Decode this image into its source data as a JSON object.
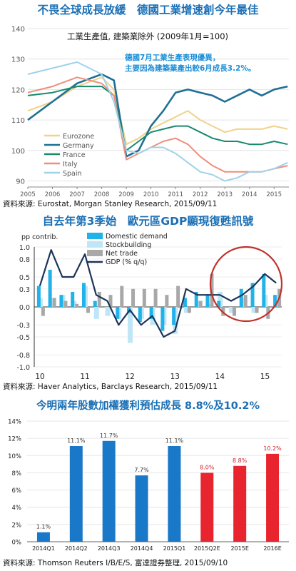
{
  "panel1": {
    "title": "不畏全球成長放緩　德國工業增速創今年最佳",
    "source": "資料來源: Eurostat, Morgan Stanley Research, 2015/09/11"
  },
  "panel2": {
    "title": "自去年第3季始　歐元區GDP顯現復甦訊號",
    "source": "資料來源: Haver Analytics, Barclays Research, 2015/09/11"
  },
  "panel3": {
    "title": "今明兩年股數加權獲利預估成長 8.8%及10.2%",
    "source": "資料來源: Thomson Reuters I/B/E/S, 富達證券整理, 2015/09/10"
  },
  "colors": {
    "eurozone": "#f0d38a",
    "germany": "#1f6f95",
    "france": "#1a8a6c",
    "italy": "#ee8e7d",
    "spain": "#9fd2ea",
    "domestic": "#20b2e8",
    "stockbuilding": "#bfe6f6",
    "nettrade": "#a8a8a8",
    "gdp": "#1c3557",
    "earn_blue": "#1978c8",
    "earn_red": "#e8242e",
    "title": "#1a6fb5"
  },
  "chart_data": [
    {
      "type": "line",
      "title": "工業生產值, 建築業除外 (2009年1月=100)",
      "annotation": "德國7月工業生產表現優異，主要因為建築業產出較6月成長3.2%。",
      "xlabel": "",
      "ylabel": "",
      "x_ticks": [
        "2005",
        "2006",
        "2007",
        "2008",
        "2009",
        "2010",
        "2011",
        "2012",
        "2013",
        "2014",
        "2015"
      ],
      "y_ticks": [
        90,
        100,
        110,
        120,
        130,
        140
      ],
      "ylim": [
        88,
        140
      ],
      "xlim": [
        2005,
        2015.6
      ],
      "grid": true,
      "legend": "bottom-left",
      "series": [
        {
          "name": "Eurozone",
          "color_key": "eurozone",
          "x": [
            2005,
            2006,
            2007,
            2008,
            2008.5,
            2009,
            2009.5,
            2010,
            2010.5,
            2011,
            2011.5,
            2012,
            2012.5,
            2013,
            2013.5,
            2014,
            2014.5,
            2015,
            2015.55
          ],
          "y": [
            113,
            116,
            121,
            124,
            120,
            102,
            104,
            107,
            109,
            111,
            113,
            110,
            108,
            106,
            107,
            107,
            107,
            108,
            107
          ]
        },
        {
          "name": "Germany",
          "color_key": "germany",
          "x": [
            2005,
            2006,
            2007,
            2008,
            2008.5,
            2009,
            2009.5,
            2010,
            2010.5,
            2011,
            2011.5,
            2012,
            2012.5,
            2013,
            2013.5,
            2014,
            2014.5,
            2015,
            2015.55
          ],
          "y": [
            110,
            116,
            122,
            125,
            123,
            98,
            100,
            108,
            113,
            119,
            120,
            119,
            118,
            116,
            118,
            120,
            118,
            120,
            121
          ]
        },
        {
          "name": "France",
          "color_key": "france",
          "x": [
            2005,
            2006,
            2007,
            2008,
            2008.5,
            2009,
            2009.5,
            2010,
            2010.5,
            2011,
            2011.5,
            2012,
            2012.5,
            2013,
            2013.5,
            2014,
            2014.5,
            2015,
            2015.55
          ],
          "y": [
            118,
            119,
            121,
            121,
            118,
            100,
            103,
            106,
            107,
            108,
            108,
            106,
            104,
            103,
            103,
            102,
            102,
            103,
            102
          ]
        },
        {
          "name": "Italy",
          "color_key": "italy",
          "x": [
            2005,
            2006,
            2007,
            2008,
            2008.5,
            2009,
            2009.5,
            2010,
            2010.5,
            2011,
            2011.5,
            2012,
            2012.5,
            2013,
            2013.5,
            2014,
            2014.5,
            2015,
            2015.55
          ],
          "y": [
            119,
            121,
            124,
            122,
            118,
            97,
            99,
            101,
            103,
            104,
            102,
            98,
            95,
            93,
            93,
            93,
            93,
            94,
            95
          ]
        },
        {
          "name": "Spain",
          "color_key": "spain",
          "x": [
            2005,
            2006,
            2007,
            2008,
            2008.5,
            2009,
            2009.5,
            2010,
            2010.5,
            2011,
            2011.5,
            2012,
            2012.5,
            2013,
            2013.5,
            2014,
            2014.5,
            2015,
            2015.55
          ],
          "y": [
            125,
            127,
            129,
            125,
            116,
            100,
            99,
            101,
            101,
            99,
            96,
            93,
            92,
            90,
            91,
            93,
            93,
            94,
            96
          ]
        }
      ]
    },
    {
      "type": "bar",
      "title": "",
      "ylabel": "pp contrib.",
      "y_ticks": [
        -1.0,
        -0.8,
        -0.5,
        -0.3,
        0.0,
        0.3,
        0.5,
        0.8,
        1.0
      ],
      "ylim": [
        -1.0,
        1.0
      ],
      "x_ticks": [
        "10",
        "11",
        "12",
        "13",
        "14",
        "15"
      ],
      "grid": true,
      "legend": "top-center",
      "quarters": [
        "2010Q1",
        "2010Q2",
        "2010Q3",
        "2010Q4",
        "2011Q1",
        "2011Q2",
        "2011Q3",
        "2011Q4",
        "2012Q1",
        "2012Q2",
        "2012Q3",
        "2012Q4",
        "2013Q1",
        "2013Q2",
        "2013Q3",
        "2013Q4",
        "2014Q1",
        "2014Q2",
        "2014Q3",
        "2014Q4",
        "2015Q1",
        "2015Q2"
      ],
      "series": [
        {
          "name": "Domestic demand",
          "color_key": "domestic",
          "values": [
            0.35,
            0.62,
            0.2,
            0.25,
            0.4,
            0.1,
            0.0,
            -0.2,
            -0.1,
            -0.25,
            -0.2,
            -0.4,
            -0.3,
            0.15,
            0.25,
            0.2,
            0.1,
            0.0,
            0.3,
            0.4,
            0.55,
            0.2
          ]
        },
        {
          "name": "Stockbuilding",
          "color_key": "stockbuilding",
          "values": [
            0.15,
            0.15,
            0.2,
            0.1,
            0.35,
            -0.2,
            -0.15,
            -0.2,
            -0.6,
            -0.2,
            -0.3,
            -0.3,
            -0.45,
            -0.1,
            0.1,
            0.05,
            0.25,
            -0.1,
            0.15,
            -0.1,
            0.2,
            0.1
          ]
        },
        {
          "name": "Net trade",
          "color_key": "nettrade",
          "values": [
            -0.15,
            0.15,
            0.1,
            0.05,
            -0.1,
            0.25,
            0.2,
            0.35,
            0.3,
            0.3,
            0.3,
            0.2,
            0.35,
            -0.1,
            0.1,
            0.55,
            -0.15,
            -0.15,
            0.2,
            -0.1,
            -0.2,
            0.3
          ]
        },
        {
          "name": "GDP (% q/q)",
          "color_key": "gdp",
          "values": [
            0.35,
            0.95,
            0.5,
            0.5,
            0.88,
            0.2,
            0.1,
            -0.3,
            -0.05,
            -0.3,
            -0.15,
            -0.5,
            -0.4,
            0.3,
            0.2,
            0.2,
            0.2,
            0.1,
            0.2,
            0.35,
            0.55,
            0.4
          ]
        }
      ]
    },
    {
      "type": "bar",
      "title": "",
      "ylabel": "",
      "ylim": [
        0,
        14
      ],
      "y_ticks": [
        "0%",
        "2%",
        "4%",
        "6%",
        "8%",
        "10%",
        "12%",
        "14%"
      ],
      "categories": [
        "2014Q1",
        "2014Q2",
        "2014Q3",
        "2014Q4",
        "2015Q1",
        "2015Q2E",
        "2015E",
        "2016E"
      ],
      "values": [
        1.1,
        11.1,
        11.7,
        7.7,
        11.1,
        8.0,
        8.8,
        10.2
      ],
      "labels": [
        "1.1%",
        "11.1%",
        "11.7%",
        "7.7%",
        "11.1%",
        "8.0%",
        "8.8%",
        "10.2%"
      ],
      "bar_color_keys": [
        "earn_blue",
        "earn_blue",
        "earn_blue",
        "earn_blue",
        "earn_blue",
        "earn_red",
        "earn_red",
        "earn_red"
      ],
      "grid": true
    }
  ]
}
